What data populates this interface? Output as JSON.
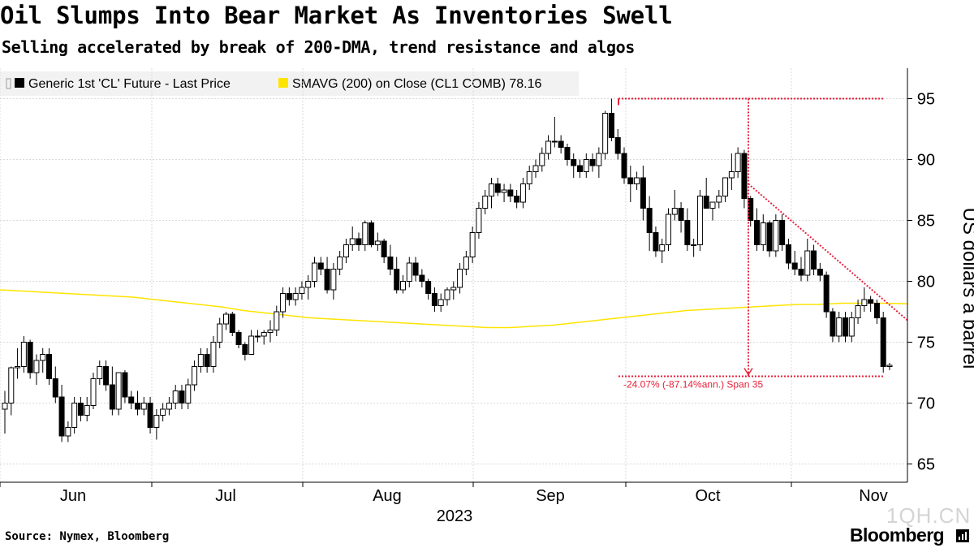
{
  "title": "Oil Slumps Into Bear Market As Inventories Swell",
  "subtitle": "Selling accelerated by break of 200-DMA, trend resistance and algos",
  "source": "Source: Nymex, Bloomberg",
  "watermark": "1QH.CN",
  "brand": "Bloomberg",
  "chart_data": {
    "type": "candlestick",
    "legend": [
      {
        "name": "Generic 1st 'CL' Future - Last Price",
        "color": "#000000"
      },
      {
        "name": "SMAVG (200)  on Close (CL1 COMB) 78.16",
        "color": "#ffe400"
      }
    ],
    "y_axis": {
      "label": "US dollars a barrel",
      "min": 63.5,
      "max": 97.5,
      "ticks": [
        65,
        70,
        75,
        80,
        85,
        90,
        95
      ],
      "side": "right"
    },
    "x_axis": {
      "month_labels": [
        "Jun",
        "Jul",
        "Aug",
        "Sep",
        "Oct",
        "Nov"
      ],
      "year_label": "2023"
    },
    "candles_ohlc": [
      [
        69.5,
        71.0,
        67.5,
        70.0
      ],
      [
        70.0,
        73.0,
        69.0,
        72.9
      ],
      [
        72.9,
        74.5,
        72.0,
        73.0
      ],
      [
        73.0,
        75.5,
        72.5,
        75.0
      ],
      [
        75.0,
        75.2,
        72.0,
        72.5
      ],
      [
        72.5,
        74.0,
        71.5,
        73.5
      ],
      [
        73.5,
        74.5,
        72.5,
        74.0
      ],
      [
        74.0,
        74.5,
        71.5,
        72.0
      ],
      [
        72.0,
        73.0,
        70.0,
        70.5
      ],
      [
        70.5,
        71.5,
        66.8,
        67.3
      ],
      [
        67.3,
        68.5,
        66.8,
        68.0
      ],
      [
        68.0,
        70.5,
        67.5,
        70.0
      ],
      [
        70.0,
        70.5,
        68.5,
        69.0
      ],
      [
        69.0,
        70.5,
        68.5,
        69.8
      ],
      [
        69.8,
        72.5,
        69.5,
        72.0
      ],
      [
        72.0,
        73.5,
        71.5,
        73.0
      ],
      [
        73.0,
        73.5,
        71.0,
        71.5
      ],
      [
        71.5,
        73.0,
        69.0,
        69.5
      ],
      [
        69.5,
        72.5,
        69.0,
        72.5
      ],
      [
        72.5,
        72.7,
        70.0,
        70.5
      ],
      [
        70.5,
        71.0,
        69.5,
        70.0
      ],
      [
        70.0,
        71.0,
        69.0,
        69.5
      ],
      [
        69.5,
        70.5,
        69.0,
        70.0
      ],
      [
        70.0,
        70.5,
        67.5,
        68.0
      ],
      [
        68.0,
        69.5,
        67.0,
        69.0
      ],
      [
        69.0,
        70.0,
        68.5,
        69.5
      ],
      [
        69.5,
        70.5,
        69.0,
        70.0
      ],
      [
        70.0,
        71.5,
        69.5,
        71.0
      ],
      [
        71.0,
        71.5,
        69.5,
        70.0
      ],
      [
        70.0,
        72.0,
        69.5,
        71.5
      ],
      [
        71.5,
        73.5,
        71.0,
        73.0
      ],
      [
        73.0,
        74.5,
        72.5,
        74.0
      ],
      [
        74.0,
        74.5,
        72.5,
        73.0
      ],
      [
        73.0,
        75.5,
        72.5,
        75.0
      ],
      [
        75.0,
        77.0,
        74.5,
        76.5
      ],
      [
        76.5,
        77.5,
        76.0,
        77.3
      ],
      [
        77.3,
        77.5,
        75.5,
        75.8
      ],
      [
        75.8,
        76.0,
        74.5,
        74.8
      ],
      [
        74.8,
        75.0,
        73.5,
        74.0
      ],
      [
        74.0,
        76.0,
        74.0,
        75.5
      ],
      [
        75.5,
        76.0,
        75.0,
        75.5
      ],
      [
        75.5,
        76.0,
        74.8,
        75.8
      ],
      [
        75.8,
        76.8,
        75.0,
        76.0
      ],
      [
        76.0,
        78.0,
        75.5,
        77.5
      ],
      [
        77.5,
        79.5,
        77.0,
        79.0
      ],
      [
        79.0,
        79.5,
        78.0,
        78.5
      ],
      [
        78.5,
        79.5,
        78.0,
        79.0
      ],
      [
        79.0,
        80.0,
        78.5,
        79.5
      ],
      [
        79.5,
        80.5,
        78.5,
        80.0
      ],
      [
        80.0,
        82.0,
        79.5,
        81.5
      ],
      [
        81.5,
        82.0,
        80.5,
        81.0
      ],
      [
        81.0,
        82.0,
        79.0,
        79.3
      ],
      [
        79.3,
        81.5,
        78.5,
        81.0
      ],
      [
        81.0,
        82.5,
        80.5,
        82.0
      ],
      [
        82.0,
        83.5,
        81.5,
        83.0
      ],
      [
        83.0,
        84.5,
        82.5,
        83.5
      ],
      [
        83.5,
        84.0,
        82.5,
        83.0
      ],
      [
        83.0,
        85.0,
        82.5,
        84.8
      ],
      [
        84.8,
        85.0,
        82.8,
        83.0
      ],
      [
        83.0,
        84.0,
        82.5,
        83.3
      ],
      [
        83.3,
        83.5,
        81.5,
        82.0
      ],
      [
        82.0,
        83.0,
        80.5,
        81.0
      ],
      [
        81.0,
        82.0,
        79.0,
        79.3
      ],
      [
        79.3,
        80.5,
        79.0,
        80.0
      ],
      [
        80.0,
        82.0,
        79.5,
        81.5
      ],
      [
        81.5,
        82.0,
        80.0,
        80.5
      ],
      [
        80.5,
        81.0,
        79.5,
        80.0
      ],
      [
        80.0,
        80.2,
        78.5,
        79.0
      ],
      [
        79.0,
        79.5,
        77.5,
        78.0
      ],
      [
        78.0,
        79.0,
        77.5,
        78.5
      ],
      [
        78.5,
        79.5,
        78.0,
        79.3
      ],
      [
        79.3,
        80.0,
        78.5,
        79.5
      ],
      [
        79.5,
        81.5,
        79.0,
        81.0
      ],
      [
        81.0,
        82.5,
        80.5,
        82.0
      ],
      [
        82.0,
        84.5,
        81.5,
        84.0
      ],
      [
        84.0,
        86.5,
        83.5,
        86.0
      ],
      [
        86.0,
        87.5,
        85.5,
        87.0
      ],
      [
        87.0,
        88.5,
        86.0,
        88.0
      ],
      [
        88.0,
        88.5,
        87.0,
        87.3
      ],
      [
        87.3,
        88.0,
        86.5,
        87.5
      ],
      [
        87.5,
        88.0,
        86.5,
        87.0
      ],
      [
        87.0,
        87.5,
        86.0,
        86.5
      ],
      [
        86.5,
        88.5,
        86.0,
        88.0
      ],
      [
        88.0,
        89.5,
        87.5,
        89.0
      ],
      [
        89.0,
        90.0,
        88.5,
        89.5
      ],
      [
        89.5,
        91.0,
        89.0,
        90.5
      ],
      [
        90.5,
        92.0,
        90.0,
        91.5
      ],
      [
        91.5,
        93.5,
        91.0,
        91.5
      ],
      [
        91.5,
        92.0,
        90.5,
        91.0
      ],
      [
        91.0,
        91.3,
        89.5,
        90.0
      ],
      [
        90.0,
        90.5,
        88.5,
        89.5
      ],
      [
        89.5,
        90.0,
        88.5,
        89.0
      ],
      [
        89.0,
        90.5,
        88.5,
        90.0
      ],
      [
        90.0,
        90.5,
        89.0,
        89.5
      ],
      [
        89.5,
        91.0,
        88.5,
        90.5
      ],
      [
        90.5,
        94.0,
        90.0,
        93.8
      ],
      [
        93.8,
        95.0,
        91.5,
        91.8
      ],
      [
        91.8,
        92.5,
        90.0,
        90.5
      ],
      [
        90.5,
        91.0,
        88.0,
        88.5
      ],
      [
        88.5,
        89.5,
        86.5,
        88.0
      ],
      [
        88.0,
        89.0,
        87.5,
        88.5
      ],
      [
        88.5,
        89.5,
        85.0,
        86.0
      ],
      [
        86.0,
        87.0,
        82.5,
        84.0
      ],
      [
        84.0,
        84.5,
        82.0,
        82.5
      ],
      [
        82.5,
        83.5,
        81.5,
        83.0
      ],
      [
        83.0,
        86.0,
        82.5,
        85.5
      ],
      [
        85.5,
        87.5,
        85.0,
        86.0
      ],
      [
        86.0,
        86.5,
        84.0,
        85.0
      ],
      [
        85.0,
        86.0,
        82.5,
        83.0
      ],
      [
        83.0,
        83.5,
        82.0,
        83.0
      ],
      [
        83.0,
        87.5,
        82.5,
        87.0
      ],
      [
        87.0,
        88.5,
        86.0,
        86.0
      ],
      [
        86.0,
        86.5,
        85.0,
        86.5
      ],
      [
        86.5,
        87.5,
        86.0,
        87.0
      ],
      [
        87.0,
        88.5,
        86.5,
        88.5
      ],
      [
        88.5,
        90.5,
        87.5,
        89.0
      ],
      [
        89.0,
        91.0,
        88.5,
        90.5
      ],
      [
        90.5,
        90.8,
        86.0,
        86.8
      ],
      [
        86.8,
        87.0,
        84.5,
        85.0
      ],
      [
        85.0,
        86.0,
        82.5,
        83.0
      ],
      [
        83.0,
        85.5,
        82.5,
        84.8
      ],
      [
        84.8,
        85.0,
        82.0,
        82.5
      ],
      [
        82.5,
        85.5,
        82.0,
        85.0
      ],
      [
        85.0,
        85.5,
        82.5,
        83.0
      ],
      [
        83.0,
        83.5,
        81.0,
        81.5
      ],
      [
        81.5,
        82.5,
        80.5,
        81.0
      ],
      [
        81.0,
        82.0,
        80.0,
        80.5
      ],
      [
        80.5,
        83.5,
        80.0,
        82.5
      ],
      [
        82.5,
        83.0,
        80.5,
        81.0
      ],
      [
        81.0,
        81.5,
        80.0,
        80.5
      ],
      [
        80.5,
        80.8,
        77.0,
        77.5
      ],
      [
        77.5,
        77.8,
        75.0,
        75.5
      ],
      [
        75.5,
        77.5,
        75.0,
        77.0
      ],
      [
        77.0,
        77.5,
        75.0,
        75.5
      ],
      [
        75.5,
        77.5,
        75.0,
        77.0
      ],
      [
        77.0,
        78.5,
        76.5,
        78.0
      ],
      [
        78.0,
        79.5,
        77.5,
        78.5
      ],
      [
        78.5,
        78.8,
        77.5,
        78.2
      ],
      [
        78.2,
        78.5,
        76.5,
        77.0
      ],
      [
        77.0,
        77.5,
        72.5,
        73.0
      ],
      [
        73.0,
        73.3,
        72.7,
        73.1
      ]
    ],
    "sma200": [
      79.3,
      79.2,
      79.1,
      79.0,
      78.9,
      78.8,
      78.7,
      78.5,
      78.3,
      78.1,
      77.9,
      77.6,
      77.4,
      77.2,
      77.0,
      76.9,
      76.8,
      76.7,
      76.6,
      76.5,
      76.4,
      76.3,
      76.2,
      76.2,
      76.3,
      76.4,
      76.6,
      76.8,
      77.0,
      77.2,
      77.4,
      77.6,
      77.7,
      77.8,
      77.9,
      78.0,
      78.1,
      78.1,
      78.2,
      78.2,
      78.2,
      78.16
    ],
    "annotations": {
      "high_level": 95.0,
      "low_level": 72.2,
      "trendline_start": 88.0,
      "trendline_end": 76.8,
      "span_label": "-24.07% (-87.14%ann.) Span 35"
    }
  }
}
